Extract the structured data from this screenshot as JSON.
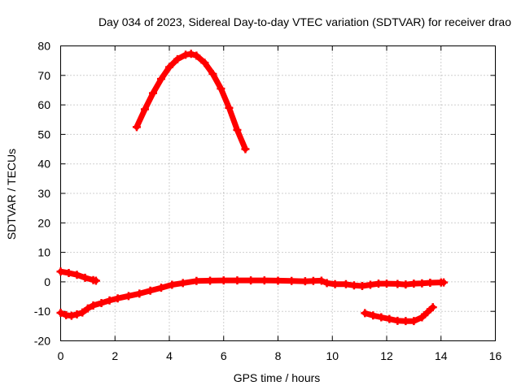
{
  "chart_data": {
    "type": "scatter",
    "title": "Day 034 of 2023, Sidereal Day-to-day VTEC variation (SDTVAR) for receiver drao",
    "xlabel": "GPS time / hours",
    "ylabel": "SDTVAR / TECUs",
    "xlim": [
      0,
      16
    ],
    "ylim": [
      -20,
      80
    ],
    "xticks": [
      0,
      2,
      4,
      6,
      8,
      10,
      12,
      14,
      16
    ],
    "yticks": [
      -20,
      -10,
      0,
      10,
      20,
      30,
      40,
      50,
      60,
      70,
      80
    ],
    "grid": true,
    "color": "#ff0000",
    "series": [
      {
        "name": "segment-1",
        "points": [
          [
            0.0,
            3.5
          ],
          [
            0.3,
            3.0
          ],
          [
            0.6,
            2.4
          ],
          [
            0.9,
            1.4
          ],
          [
            1.2,
            0.6
          ],
          [
            1.3,
            0.4
          ]
        ]
      },
      {
        "name": "segment-2",
        "points": [
          [
            0.0,
            -10.5
          ],
          [
            0.2,
            -11.3
          ],
          [
            0.4,
            -11.5
          ],
          [
            0.6,
            -11.0
          ],
          [
            0.8,
            -10.4
          ],
          [
            1.0,
            -9.0
          ],
          [
            1.2,
            -8.0
          ],
          [
            1.5,
            -7.2
          ],
          [
            1.8,
            -6.3
          ],
          [
            2.1,
            -5.6
          ],
          [
            2.5,
            -4.8
          ],
          [
            2.9,
            -4.0
          ],
          [
            3.3,
            -3.0
          ],
          [
            3.7,
            -2.0
          ],
          [
            4.1,
            -1.0
          ],
          [
            4.5,
            -0.4
          ],
          [
            5.0,
            0.3
          ],
          [
            5.5,
            0.4
          ],
          [
            6.0,
            0.5
          ],
          [
            6.5,
            0.5
          ],
          [
            7.0,
            0.5
          ],
          [
            7.5,
            0.5
          ],
          [
            8.0,
            0.4
          ],
          [
            8.5,
            0.3
          ],
          [
            9.0,
            0.2
          ],
          [
            9.3,
            0.3
          ],
          [
            9.6,
            0.4
          ],
          [
            9.8,
            -0.4
          ],
          [
            10.1,
            -0.8
          ],
          [
            10.5,
            -0.8
          ],
          [
            10.8,
            -1.2
          ],
          [
            11.1,
            -1.4
          ],
          [
            11.4,
            -1.0
          ],
          [
            11.7,
            -0.6
          ],
          [
            12.0,
            -0.6
          ],
          [
            12.4,
            -0.7
          ],
          [
            12.7,
            -0.9
          ],
          [
            13.0,
            -0.6
          ],
          [
            13.3,
            -0.5
          ],
          [
            13.6,
            -0.3
          ],
          [
            14.0,
            -0.2
          ],
          [
            14.1,
            -0.2
          ]
        ]
      },
      {
        "name": "segment-3",
        "points": [
          [
            2.8,
            52.5
          ],
          [
            3.1,
            58.5
          ],
          [
            3.4,
            64.0
          ],
          [
            3.7,
            68.8
          ],
          [
            4.0,
            72.8
          ],
          [
            4.3,
            75.5
          ],
          [
            4.6,
            77.0
          ],
          [
            4.8,
            77.3
          ],
          [
            5.0,
            76.7
          ],
          [
            5.3,
            74.3
          ],
          [
            5.6,
            70.5
          ],
          [
            5.9,
            65.5
          ],
          [
            6.2,
            59.0
          ],
          [
            6.5,
            51.5
          ],
          [
            6.8,
            45.0
          ]
        ]
      },
      {
        "name": "segment-4",
        "points": [
          [
            11.2,
            -10.6
          ],
          [
            11.5,
            -11.4
          ],
          [
            11.8,
            -12.0
          ],
          [
            12.1,
            -12.6
          ],
          [
            12.4,
            -13.2
          ],
          [
            12.7,
            -13.3
          ],
          [
            13.0,
            -13.3
          ],
          [
            13.3,
            -12.0
          ],
          [
            13.5,
            -10.3
          ],
          [
            13.7,
            -8.6
          ]
        ]
      }
    ]
  }
}
